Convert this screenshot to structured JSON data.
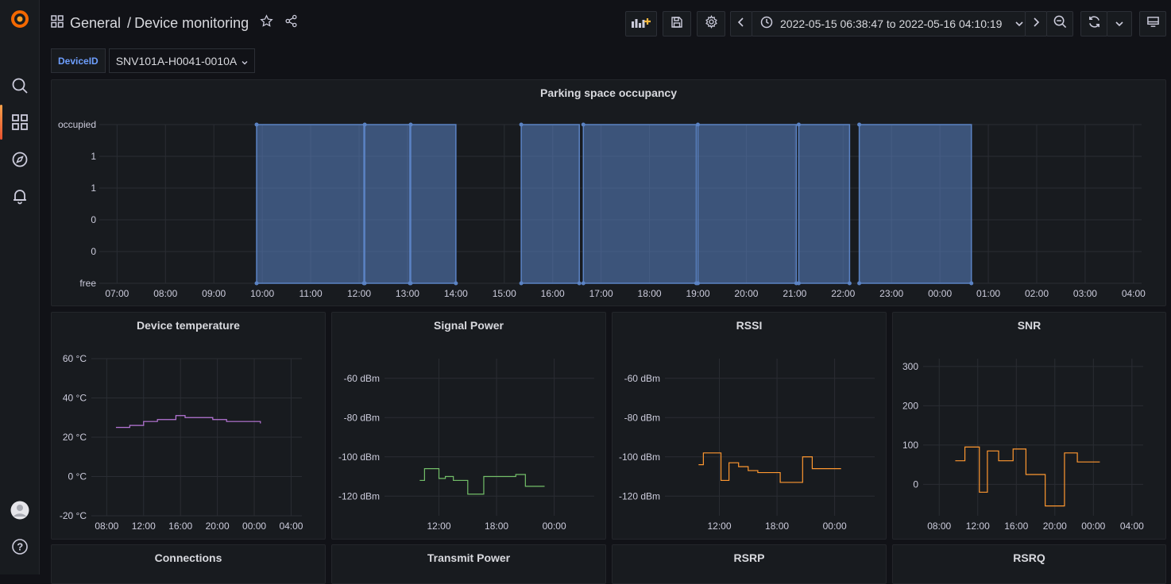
{
  "header": {
    "crumb_folder": "General",
    "crumb_sep": "/",
    "crumb_title": "Device monitoring",
    "time_range": "2022-05-15 06:38:47 to 2022-05-16 04:10:19"
  },
  "variables": {
    "label": "DeviceID",
    "value": "SNV101A-H0041-0010A"
  },
  "icons": [
    "grafana-logo-icon",
    "search-icon",
    "dashboards-icon",
    "explore-icon",
    "alerting-icon",
    "user-avatar-icon",
    "help-icon",
    "dashboard-grid-icon",
    "star-icon",
    "share-icon",
    "add-panel-icon",
    "save-icon",
    "settings-icon",
    "chevron-left-icon",
    "clock-icon",
    "chevron-down-icon",
    "chevron-right-icon",
    "zoom-out-icon",
    "refresh-icon",
    "tv-mode-icon"
  ],
  "colors": {
    "occupancy": "#5b83c4",
    "temperature": "#b877d9",
    "signal": "#73bf69",
    "rssi": "#ff9830",
    "snr": "#ff9830",
    "accent": "#f46800"
  },
  "panels": {
    "occupancy": {
      "title": "Parking space occupancy"
    },
    "temperature": {
      "title": "Device temperature"
    },
    "signal": {
      "title": "Signal Power"
    },
    "rssi": {
      "title": "RSSI"
    },
    "snr": {
      "title": "SNR"
    },
    "connections": {
      "title": "Connections"
    },
    "transmit": {
      "title": "Transmit Power"
    },
    "rsrp": {
      "title": "RSRP"
    },
    "rsrq": {
      "title": "RSRQ"
    }
  },
  "chart_data": [
    {
      "type": "area",
      "title": "Parking space occupancy",
      "y_tick_labels": [
        "occupied",
        "1",
        "1",
        "0",
        "0",
        "free"
      ],
      "x_tick_labels": [
        "07:00",
        "08:00",
        "09:00",
        "10:00",
        "11:00",
        "12:00",
        "13:00",
        "14:00",
        "15:00",
        "16:00",
        "17:00",
        "18:00",
        "19:00",
        "20:00",
        "21:00",
        "22:00",
        "23:00",
        "00:00",
        "01:00",
        "02:00",
        "03:00",
        "04:00"
      ],
      "xlim": [
        "06:38",
        "04:10"
      ],
      "series": [
        {
          "occupied_intervals": [
            [
              "09:53",
              "12:06"
            ],
            [
              "12:07",
              "13:03"
            ],
            [
              "13:04",
              "14:00"
            ],
            [
              "15:21",
              "16:33"
            ],
            [
              "16:38",
              "18:58"
            ],
            [
              "19:00",
              "21:02"
            ],
            [
              "21:05",
              "22:08"
            ],
            [
              "22:20",
              "00:39"
            ]
          ]
        }
      ]
    },
    {
      "type": "line",
      "title": "Device temperature",
      "y_tick_labels": [
        "60 °C",
        "40 °C",
        "20 °C",
        "0 °C",
        "-20 °C"
      ],
      "x_tick_labels": [
        "08:00",
        "12:00",
        "16:00",
        "20:00",
        "00:00",
        "04:00"
      ],
      "ylim": [
        -20,
        60
      ],
      "series": [
        {
          "points": [
            [
              "09:00",
              25
            ],
            [
              "10:30",
              26
            ],
            [
              "12:00",
              28
            ],
            [
              "13:30",
              29
            ],
            [
              "15:30",
              31
            ],
            [
              "16:30",
              30
            ],
            [
              "19:30",
              29
            ],
            [
              "21:00",
              28
            ],
            [
              "23:00",
              28
            ],
            [
              "00:40",
              27
            ]
          ]
        }
      ]
    },
    {
      "type": "line",
      "title": "Signal Power",
      "y_tick_labels": [
        "-60 dBm",
        "-80 dBm",
        "-100 dBm",
        "-120 dBm"
      ],
      "x_tick_labels": [
        "12:00",
        "18:00",
        "00:00"
      ],
      "ylim": [
        -130,
        -50
      ],
      "series": [
        {
          "points": [
            [
              "10:00",
              -112
            ],
            [
              "10:30",
              -106
            ],
            [
              "12:00",
              -111
            ],
            [
              "12:40",
              -110
            ],
            [
              "13:30",
              -112
            ],
            [
              "15:00",
              -119
            ],
            [
              "16:40",
              -110
            ],
            [
              "20:00",
              -109
            ],
            [
              "21:00",
              -115
            ],
            [
              "23:00",
              -115
            ]
          ]
        }
      ]
    },
    {
      "type": "line",
      "title": "RSSI",
      "y_tick_labels": [
        "-60 dBm",
        "-80 dBm",
        "-100 dBm",
        "-120 dBm"
      ],
      "x_tick_labels": [
        "12:00",
        "18:00",
        "00:00"
      ],
      "ylim": [
        -130,
        -50
      ],
      "series": [
        {
          "points": [
            [
              "09:50",
              -104
            ],
            [
              "10:20",
              -98
            ],
            [
              "12:10",
              -112
            ],
            [
              "13:00",
              -103
            ],
            [
              "14:00",
              -105
            ],
            [
              "15:00",
              -107
            ],
            [
              "16:00",
              -108
            ],
            [
              "18:20",
              -113
            ],
            [
              "20:40",
              -100
            ],
            [
              "21:40",
              -106
            ],
            [
              "00:40",
              -106
            ]
          ]
        }
      ]
    },
    {
      "type": "line",
      "title": "SNR",
      "y_tick_labels": [
        "300",
        "200",
        "100",
        "0"
      ],
      "x_tick_labels": [
        "08:00",
        "12:00",
        "16:00",
        "20:00",
        "00:00",
        "04:00"
      ],
      "ylim": [
        -80,
        320
      ],
      "series": [
        {
          "points": [
            [
              "09:40",
              60
            ],
            [
              "10:40",
              95
            ],
            [
              "12:10",
              -20
            ],
            [
              "13:00",
              85
            ],
            [
              "14:10",
              60
            ],
            [
              "15:40",
              90
            ],
            [
              "17:00",
              25
            ],
            [
              "19:00",
              -55
            ],
            [
              "21:00",
              80
            ],
            [
              "22:20",
              57
            ],
            [
              "00:40",
              57
            ]
          ]
        }
      ]
    }
  ]
}
